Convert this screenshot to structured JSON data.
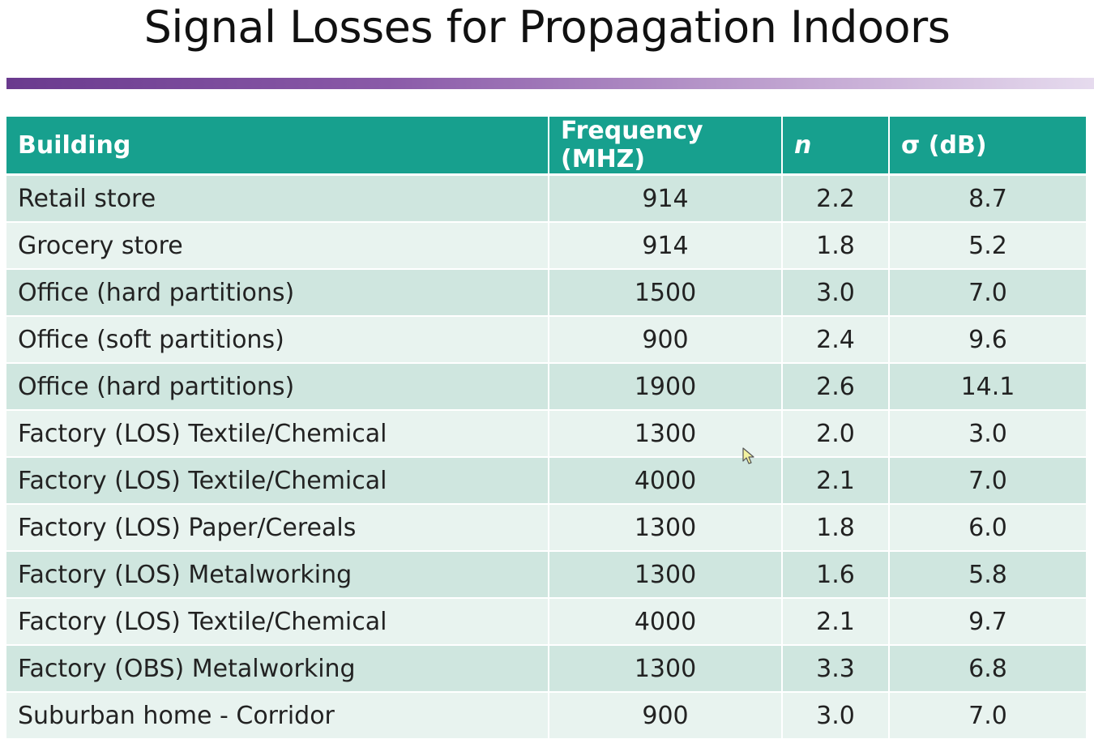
{
  "slide": {
    "title": "Signal Losses for Propagation Indoors"
  },
  "table": {
    "headers": {
      "building": "Building",
      "frequency": "Frequency (MHZ)",
      "n": "n",
      "sigma": "σ (dB)"
    },
    "rows": [
      {
        "building": "Retail store",
        "frequency": "914",
        "n": "2.2",
        "sigma": "8.7"
      },
      {
        "building": "Grocery store",
        "frequency": "914",
        "n": "1.8",
        "sigma": "5.2"
      },
      {
        "building": "Office (hard partitions)",
        "frequency": "1500",
        "n": "3.0",
        "sigma": "7.0"
      },
      {
        "building": "Office (soft partitions)",
        "frequency": "900",
        "n": "2.4",
        "sigma": "9.6"
      },
      {
        "building": "Office (hard partitions)",
        "frequency": "1900",
        "n": "2.6",
        "sigma": "14.1"
      },
      {
        "building": "Factory (LOS) Textile/Chemical",
        "frequency": "1300",
        "n": "2.0",
        "sigma": "3.0"
      },
      {
        "building": "Factory (LOS) Textile/Chemical",
        "frequency": "4000",
        "n": "2.1",
        "sigma": "7.0"
      },
      {
        "building": "Factory (LOS) Paper/Cereals",
        "frequency": "1300",
        "n": "1.8",
        "sigma": "6.0"
      },
      {
        "building": "Factory (LOS) Metalworking",
        "frequency": "1300",
        "n": "1.6",
        "sigma": "5.8"
      },
      {
        "building": "Factory (LOS) Textile/Chemical",
        "frequency": "4000",
        "n": "2.1",
        "sigma": "9.7"
      },
      {
        "building": "Factory (OBS) Metalworking",
        "frequency": "1300",
        "n": "3.3",
        "sigma": "6.8"
      },
      {
        "building": "Suburban home - Corridor",
        "frequency": "900",
        "n": "3.0",
        "sigma": "7.0"
      }
    ]
  },
  "colors": {
    "header_bg": "#17a08e",
    "row_odd": "#cfe6df",
    "row_even": "#e8f3ef",
    "title_bar_start": "#6a3a8e",
    "title_bar_end": "#e6dbee"
  },
  "icons": {
    "cursor": "mouse-pointer-icon"
  }
}
